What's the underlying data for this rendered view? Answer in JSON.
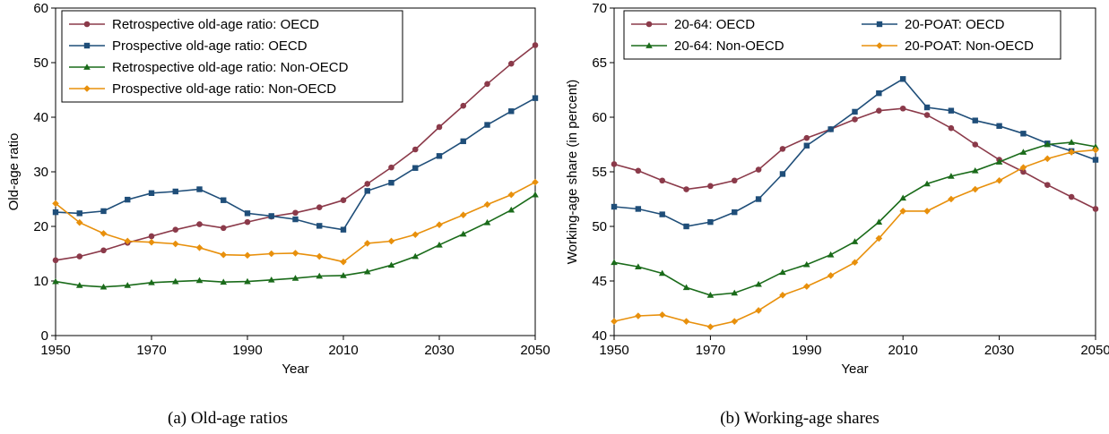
{
  "chart_data": [
    {
      "type": "line",
      "caption": "(a) Old-age ratios",
      "xlabel": "Year",
      "ylabel": "Old-age ratio",
      "xlim": [
        1950,
        2050
      ],
      "ylim": [
        0,
        60
      ],
      "xticks": [
        1950,
        1970,
        1990,
        2010,
        2030,
        2050
      ],
      "yticks": [
        0,
        10,
        20,
        30,
        40,
        50,
        60
      ],
      "grid": false,
      "legend_position": "top-left",
      "legend_columns": 1,
      "x": [
        1950,
        1955,
        1960,
        1965,
        1970,
        1975,
        1980,
        1985,
        1990,
        1995,
        2000,
        2005,
        2010,
        2015,
        2020,
        2025,
        2030,
        2035,
        2040,
        2045,
        2050
      ],
      "series": [
        {
          "name": "Retrospective old-age ratio: OECD",
          "color": "#8b3a4a",
          "marker": "circle",
          "values": [
            13.8,
            14.5,
            15.6,
            17.0,
            18.2,
            19.4,
            20.4,
            19.7,
            20.8,
            21.8,
            22.5,
            23.5,
            24.8,
            27.8,
            30.8,
            34.1,
            38.2,
            42.1,
            46.1,
            49.8,
            53.2
          ]
        },
        {
          "name": "Prospective old-age ratio: OECD",
          "color": "#1f4e79",
          "marker": "square",
          "values": [
            22.6,
            22.4,
            22.8,
            24.9,
            26.1,
            26.4,
            26.8,
            24.8,
            22.4,
            21.9,
            21.3,
            20.1,
            19.4,
            26.5,
            28.0,
            30.7,
            32.9,
            35.6,
            38.6,
            41.1,
            43.5
          ]
        },
        {
          "name": "Retrospective old-age ratio: Non-OECD",
          "color": "#1a6b1a",
          "marker": "triangle",
          "values": [
            9.9,
            9.2,
            8.9,
            9.2,
            9.7,
            9.9,
            10.1,
            9.8,
            9.9,
            10.2,
            10.5,
            10.9,
            11.0,
            11.7,
            12.9,
            14.5,
            16.6,
            18.6,
            20.7,
            23.0,
            25.8
          ]
        },
        {
          "name": "Prospective old-age ratio: Non-OECD",
          "color": "#e8900c",
          "marker": "diamond",
          "values": [
            24.2,
            20.7,
            18.7,
            17.3,
            17.1,
            16.8,
            16.1,
            14.8,
            14.7,
            15.0,
            15.1,
            14.5,
            13.5,
            16.9,
            17.3,
            18.5,
            20.3,
            22.1,
            24.0,
            25.8,
            28.1
          ]
        }
      ]
    },
    {
      "type": "line",
      "caption": "(b) Working-age shares",
      "xlabel": "Year",
      "ylabel": "Working-age share (in percent)",
      "xlim": [
        1950,
        2050
      ],
      "ylim": [
        40,
        70
      ],
      "xticks": [
        1950,
        1970,
        1990,
        2010,
        2030,
        2050
      ],
      "yticks": [
        40,
        45,
        50,
        55,
        60,
        65,
        70
      ],
      "grid": false,
      "legend_position": "top",
      "legend_columns": 2,
      "x": [
        1950,
        1955,
        1960,
        1965,
        1970,
        1975,
        1980,
        1985,
        1990,
        1995,
        2000,
        2005,
        2010,
        2015,
        2020,
        2025,
        2030,
        2035,
        2040,
        2045,
        2050
      ],
      "series": [
        {
          "name": "20-64: OECD",
          "color": "#8b3a4a",
          "marker": "circle",
          "values": [
            55.7,
            55.1,
            54.2,
            53.4,
            53.7,
            54.2,
            55.2,
            57.1,
            58.1,
            58.9,
            59.8,
            60.6,
            60.8,
            60.2,
            59.0,
            57.5,
            56.1,
            55.0,
            53.8,
            52.7,
            51.6
          ]
        },
        {
          "name": "20-POAT: OECD",
          "color": "#1f4e79",
          "marker": "square",
          "values": [
            51.8,
            51.6,
            51.1,
            50.0,
            50.4,
            51.3,
            52.5,
            54.8,
            57.4,
            58.9,
            60.5,
            62.2,
            63.5,
            60.9,
            60.6,
            59.7,
            59.2,
            58.5,
            57.6,
            56.9,
            56.1
          ]
        },
        {
          "name": "20-64: Non-OECD",
          "color": "#1a6b1a",
          "marker": "triangle",
          "values": [
            46.7,
            46.3,
            45.7,
            44.4,
            43.7,
            43.9,
            44.7,
            45.8,
            46.5,
            47.4,
            48.6,
            50.4,
            52.6,
            53.9,
            54.6,
            55.1,
            55.9,
            56.8,
            57.5,
            57.7,
            57.3
          ]
        },
        {
          "name": "20-POAT: Non-OECD",
          "color": "#e8900c",
          "marker": "diamond",
          "values": [
            41.3,
            41.8,
            41.9,
            41.3,
            40.8,
            41.3,
            42.3,
            43.7,
            44.5,
            45.5,
            46.7,
            48.9,
            51.4,
            51.4,
            52.5,
            53.4,
            54.2,
            55.4,
            56.2,
            56.8,
            57.0
          ]
        }
      ]
    }
  ]
}
